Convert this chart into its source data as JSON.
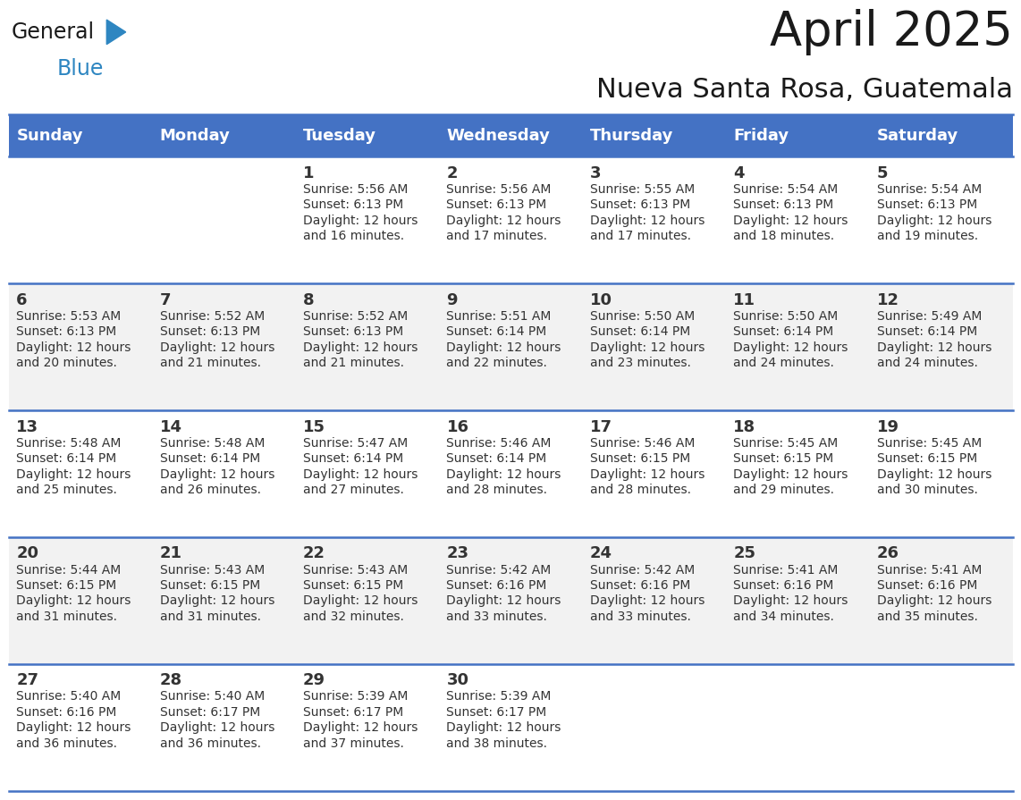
{
  "title": "April 2025",
  "subtitle": "Nueva Santa Rosa, Guatemala",
  "header_color": "#4472C4",
  "header_text_color": "#FFFFFF",
  "header_font_size": 13,
  "days_of_week": [
    "Sunday",
    "Monday",
    "Tuesday",
    "Wednesday",
    "Thursday",
    "Friday",
    "Saturday"
  ],
  "title_fontsize": 38,
  "subtitle_fontsize": 22,
  "bg_color": "#FFFFFF",
  "alt_row_color": "#F2F2F2",
  "border_color": "#4472C4",
  "cell_text_color": "#333333",
  "day_num_fontsize": 13,
  "info_fontsize": 10,
  "calendar": [
    [
      {
        "day": "",
        "sunrise": "",
        "sunset": "",
        "daylight": ""
      },
      {
        "day": "",
        "sunrise": "",
        "sunset": "",
        "daylight": ""
      },
      {
        "day": "1",
        "sunrise": "Sunrise: 5:56 AM",
        "sunset": "Sunset: 6:13 PM",
        "daylight": "Daylight: 12 hours\nand 16 minutes."
      },
      {
        "day": "2",
        "sunrise": "Sunrise: 5:56 AM",
        "sunset": "Sunset: 6:13 PM",
        "daylight": "Daylight: 12 hours\nand 17 minutes."
      },
      {
        "day": "3",
        "sunrise": "Sunrise: 5:55 AM",
        "sunset": "Sunset: 6:13 PM",
        "daylight": "Daylight: 12 hours\nand 17 minutes."
      },
      {
        "day": "4",
        "sunrise": "Sunrise: 5:54 AM",
        "sunset": "Sunset: 6:13 PM",
        "daylight": "Daylight: 12 hours\nand 18 minutes."
      },
      {
        "day": "5",
        "sunrise": "Sunrise: 5:54 AM",
        "sunset": "Sunset: 6:13 PM",
        "daylight": "Daylight: 12 hours\nand 19 minutes."
      }
    ],
    [
      {
        "day": "6",
        "sunrise": "Sunrise: 5:53 AM",
        "sunset": "Sunset: 6:13 PM",
        "daylight": "Daylight: 12 hours\nand 20 minutes."
      },
      {
        "day": "7",
        "sunrise": "Sunrise: 5:52 AM",
        "sunset": "Sunset: 6:13 PM",
        "daylight": "Daylight: 12 hours\nand 21 minutes."
      },
      {
        "day": "8",
        "sunrise": "Sunrise: 5:52 AM",
        "sunset": "Sunset: 6:13 PM",
        "daylight": "Daylight: 12 hours\nand 21 minutes."
      },
      {
        "day": "9",
        "sunrise": "Sunrise: 5:51 AM",
        "sunset": "Sunset: 6:14 PM",
        "daylight": "Daylight: 12 hours\nand 22 minutes."
      },
      {
        "day": "10",
        "sunrise": "Sunrise: 5:50 AM",
        "sunset": "Sunset: 6:14 PM",
        "daylight": "Daylight: 12 hours\nand 23 minutes."
      },
      {
        "day": "11",
        "sunrise": "Sunrise: 5:50 AM",
        "sunset": "Sunset: 6:14 PM",
        "daylight": "Daylight: 12 hours\nand 24 minutes."
      },
      {
        "day": "12",
        "sunrise": "Sunrise: 5:49 AM",
        "sunset": "Sunset: 6:14 PM",
        "daylight": "Daylight: 12 hours\nand 24 minutes."
      }
    ],
    [
      {
        "day": "13",
        "sunrise": "Sunrise: 5:48 AM",
        "sunset": "Sunset: 6:14 PM",
        "daylight": "Daylight: 12 hours\nand 25 minutes."
      },
      {
        "day": "14",
        "sunrise": "Sunrise: 5:48 AM",
        "sunset": "Sunset: 6:14 PM",
        "daylight": "Daylight: 12 hours\nand 26 minutes."
      },
      {
        "day": "15",
        "sunrise": "Sunrise: 5:47 AM",
        "sunset": "Sunset: 6:14 PM",
        "daylight": "Daylight: 12 hours\nand 27 minutes."
      },
      {
        "day": "16",
        "sunrise": "Sunrise: 5:46 AM",
        "sunset": "Sunset: 6:14 PM",
        "daylight": "Daylight: 12 hours\nand 28 minutes."
      },
      {
        "day": "17",
        "sunrise": "Sunrise: 5:46 AM",
        "sunset": "Sunset: 6:15 PM",
        "daylight": "Daylight: 12 hours\nand 28 minutes."
      },
      {
        "day": "18",
        "sunrise": "Sunrise: 5:45 AM",
        "sunset": "Sunset: 6:15 PM",
        "daylight": "Daylight: 12 hours\nand 29 minutes."
      },
      {
        "day": "19",
        "sunrise": "Sunrise: 5:45 AM",
        "sunset": "Sunset: 6:15 PM",
        "daylight": "Daylight: 12 hours\nand 30 minutes."
      }
    ],
    [
      {
        "day": "20",
        "sunrise": "Sunrise: 5:44 AM",
        "sunset": "Sunset: 6:15 PM",
        "daylight": "Daylight: 12 hours\nand 31 minutes."
      },
      {
        "day": "21",
        "sunrise": "Sunrise: 5:43 AM",
        "sunset": "Sunset: 6:15 PM",
        "daylight": "Daylight: 12 hours\nand 31 minutes."
      },
      {
        "day": "22",
        "sunrise": "Sunrise: 5:43 AM",
        "sunset": "Sunset: 6:15 PM",
        "daylight": "Daylight: 12 hours\nand 32 minutes."
      },
      {
        "day": "23",
        "sunrise": "Sunrise: 5:42 AM",
        "sunset": "Sunset: 6:16 PM",
        "daylight": "Daylight: 12 hours\nand 33 minutes."
      },
      {
        "day": "24",
        "sunrise": "Sunrise: 5:42 AM",
        "sunset": "Sunset: 6:16 PM",
        "daylight": "Daylight: 12 hours\nand 33 minutes."
      },
      {
        "day": "25",
        "sunrise": "Sunrise: 5:41 AM",
        "sunset": "Sunset: 6:16 PM",
        "daylight": "Daylight: 12 hours\nand 34 minutes."
      },
      {
        "day": "26",
        "sunrise": "Sunrise: 5:41 AM",
        "sunset": "Sunset: 6:16 PM",
        "daylight": "Daylight: 12 hours\nand 35 minutes."
      }
    ],
    [
      {
        "day": "27",
        "sunrise": "Sunrise: 5:40 AM",
        "sunset": "Sunset: 6:16 PM",
        "daylight": "Daylight: 12 hours\nand 36 minutes."
      },
      {
        "day": "28",
        "sunrise": "Sunrise: 5:40 AM",
        "sunset": "Sunset: 6:17 PM",
        "daylight": "Daylight: 12 hours\nand 36 minutes."
      },
      {
        "day": "29",
        "sunrise": "Sunrise: 5:39 AM",
        "sunset": "Sunset: 6:17 PM",
        "daylight": "Daylight: 12 hours\nand 37 minutes."
      },
      {
        "day": "30",
        "sunrise": "Sunrise: 5:39 AM",
        "sunset": "Sunset: 6:17 PM",
        "daylight": "Daylight: 12 hours\nand 38 minutes."
      },
      {
        "day": "",
        "sunrise": "",
        "sunset": "",
        "daylight": ""
      },
      {
        "day": "",
        "sunrise": "",
        "sunset": "",
        "daylight": ""
      },
      {
        "day": "",
        "sunrise": "",
        "sunset": "",
        "daylight": ""
      }
    ]
  ]
}
